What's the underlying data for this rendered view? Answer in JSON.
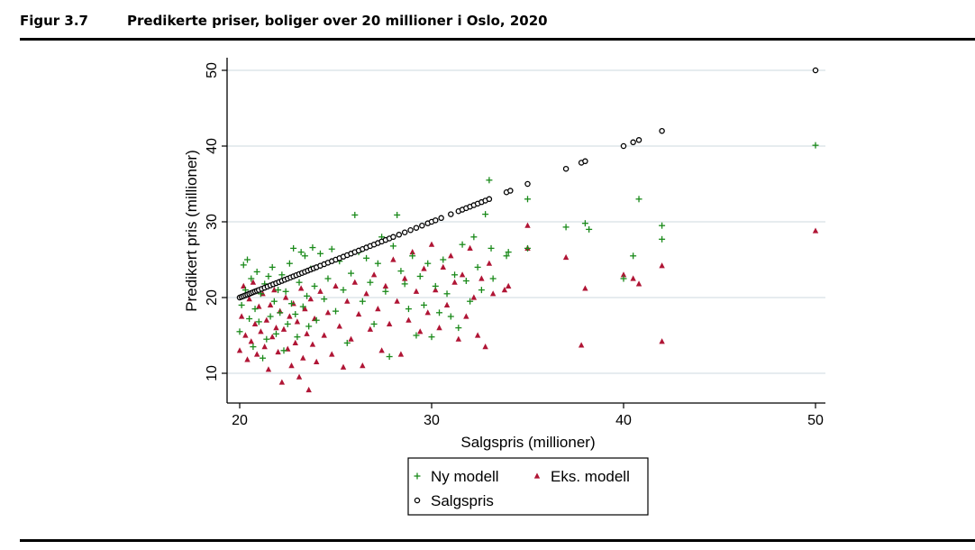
{
  "figure": {
    "number": "Figur 3.7",
    "title": "Predikerte priser, boliger over 20 millioner i Oslo, 2020"
  },
  "colors": {
    "ny_modell": "#1a8a1a",
    "eks_modell": "#b01535",
    "salgspris": "#000000",
    "grid": "#dde6ea"
  },
  "chart_data": {
    "type": "scatter",
    "title": "Predikerte priser, boliger over 20 millioner i Oslo, 2020",
    "xlabel": "Salgspris (millioner)",
    "ylabel": "Predikert pris (millioner)",
    "xlim": [
      20,
      50
    ],
    "ylim": [
      6.5,
      52
    ],
    "xticks": [
      "20",
      "30",
      "40",
      "50"
    ],
    "yticks": [
      "10",
      "20",
      "30",
      "40",
      "50"
    ],
    "grid": true,
    "legend": {
      "position": "bottom",
      "entries": [
        {
          "name": "Ny modell",
          "marker": "plus"
        },
        {
          "name": "Eks. modell",
          "marker": "triangle"
        },
        {
          "name": "Salgspris",
          "marker": "circle"
        }
      ]
    },
    "series": [
      {
        "name": "Ny modell",
        "marker": "plus",
        "points": [
          [
            20.0,
            15.5
          ],
          [
            20.1,
            19.0
          ],
          [
            20.2,
            24.3
          ],
          [
            20.3,
            21.0
          ],
          [
            20.4,
            25.0
          ],
          [
            20.5,
            17.2
          ],
          [
            20.6,
            22.5
          ],
          [
            20.7,
            13.5
          ],
          [
            20.8,
            18.5
          ],
          [
            20.9,
            23.4
          ],
          [
            21.0,
            16.8
          ],
          [
            21.1,
            20.5
          ],
          [
            21.2,
            12.0
          ],
          [
            21.3,
            21.8
          ],
          [
            21.4,
            14.5
          ],
          [
            21.5,
            22.8
          ],
          [
            21.6,
            17.5
          ],
          [
            21.7,
            24.0
          ],
          [
            21.8,
            19.5
          ],
          [
            21.9,
            15.2
          ],
          [
            22.0,
            21.0
          ],
          [
            22.1,
            18.0
          ],
          [
            22.2,
            23.0
          ],
          [
            22.3,
            13.0
          ],
          [
            22.4,
            20.8
          ],
          [
            22.5,
            16.5
          ],
          [
            22.6,
            24.5
          ],
          [
            22.7,
            19.2
          ],
          [
            22.8,
            26.5
          ],
          [
            22.9,
            17.8
          ],
          [
            23.0,
            14.8
          ],
          [
            23.1,
            22.0
          ],
          [
            23.2,
            26.0
          ],
          [
            23.3,
            18.8
          ],
          [
            23.4,
            25.5
          ],
          [
            23.5,
            20.2
          ],
          [
            23.6,
            16.2
          ],
          [
            23.7,
            23.8
          ],
          [
            23.8,
            26.6
          ],
          [
            23.9,
            21.5
          ],
          [
            24.0,
            17.0
          ],
          [
            24.2,
            25.8
          ],
          [
            24.4,
            19.8
          ],
          [
            24.6,
            22.5
          ],
          [
            24.8,
            26.4
          ],
          [
            25.0,
            18.2
          ],
          [
            25.2,
            24.8
          ],
          [
            25.4,
            21.0
          ],
          [
            25.6,
            14.0
          ],
          [
            25.8,
            23.2
          ],
          [
            26.0,
            30.9
          ],
          [
            26.2,
            26.0
          ],
          [
            26.4,
            19.5
          ],
          [
            26.6,
            25.2
          ],
          [
            26.8,
            22.0
          ],
          [
            27.0,
            16.5
          ],
          [
            27.2,
            24.5
          ],
          [
            27.4,
            28.0
          ],
          [
            27.6,
            20.8
          ],
          [
            27.8,
            12.2
          ],
          [
            28.0,
            26.8
          ],
          [
            28.2,
            30.9
          ],
          [
            28.4,
            23.5
          ],
          [
            28.6,
            21.8
          ],
          [
            28.8,
            18.5
          ],
          [
            29.0,
            25.5
          ],
          [
            29.2,
            15.0
          ],
          [
            29.4,
            22.8
          ],
          [
            29.6,
            19.0
          ],
          [
            29.8,
            24.5
          ],
          [
            30.0,
            14.8
          ],
          [
            30.2,
            21.5
          ],
          [
            30.4,
            18.0
          ],
          [
            30.6,
            25.0
          ],
          [
            30.8,
            20.5
          ],
          [
            31.0,
            17.5
          ],
          [
            31.2,
            23.0
          ],
          [
            31.4,
            16.0
          ],
          [
            31.6,
            27.0
          ],
          [
            31.8,
            22.2
          ],
          [
            32.0,
            19.5
          ],
          [
            32.2,
            28.0
          ],
          [
            32.4,
            24.0
          ],
          [
            32.6,
            21.0
          ],
          [
            32.8,
            31.0
          ],
          [
            33.0,
            35.5
          ],
          [
            33.1,
            26.5
          ],
          [
            33.2,
            22.5
          ],
          [
            33.9,
            25.5
          ],
          [
            34.0,
            26.0
          ],
          [
            35.0,
            33.0
          ],
          [
            35.0,
            26.5
          ],
          [
            37.0,
            29.3
          ],
          [
            38.0,
            29.8
          ],
          [
            38.2,
            29.0
          ],
          [
            40.0,
            22.5
          ],
          [
            40.5,
            25.5
          ],
          [
            40.8,
            33.0
          ],
          [
            42.0,
            29.5
          ],
          [
            42.0,
            27.7
          ],
          [
            50.0,
            40.1
          ]
        ]
      },
      {
        "name": "Eks. modell",
        "marker": "triangle",
        "points": [
          [
            20.0,
            13.0
          ],
          [
            20.1,
            17.5
          ],
          [
            20.2,
            21.5
          ],
          [
            20.3,
            15.0
          ],
          [
            20.4,
            11.8
          ],
          [
            20.5,
            19.8
          ],
          [
            20.6,
            14.2
          ],
          [
            20.7,
            22.0
          ],
          [
            20.8,
            16.5
          ],
          [
            20.9,
            12.5
          ],
          [
            21.0,
            18.8
          ],
          [
            21.1,
            15.5
          ],
          [
            21.2,
            20.5
          ],
          [
            21.3,
            13.5
          ],
          [
            21.4,
            17.0
          ],
          [
            21.5,
            10.5
          ],
          [
            21.6,
            19.0
          ],
          [
            21.7,
            14.8
          ],
          [
            21.8,
            21.0
          ],
          [
            21.9,
            16.0
          ],
          [
            22.0,
            12.8
          ],
          [
            22.1,
            18.2
          ],
          [
            22.2,
            8.8
          ],
          [
            22.3,
            15.8
          ],
          [
            22.4,
            20.0
          ],
          [
            22.5,
            13.2
          ],
          [
            22.6,
            17.5
          ],
          [
            22.7,
            11.0
          ],
          [
            22.8,
            19.2
          ],
          [
            22.9,
            14.0
          ],
          [
            23.0,
            16.8
          ],
          [
            23.1,
            9.5
          ],
          [
            23.2,
            21.2
          ],
          [
            23.3,
            12.0
          ],
          [
            23.4,
            18.5
          ],
          [
            23.5,
            15.2
          ],
          [
            23.6,
            7.8
          ],
          [
            23.7,
            19.8
          ],
          [
            23.8,
            13.8
          ],
          [
            23.9,
            17.2
          ],
          [
            24.0,
            11.5
          ],
          [
            24.2,
            20.8
          ],
          [
            24.4,
            15.0
          ],
          [
            24.6,
            18.0
          ],
          [
            24.8,
            12.5
          ],
          [
            25.0,
            21.5
          ],
          [
            25.2,
            16.2
          ],
          [
            25.4,
            10.8
          ],
          [
            25.6,
            19.5
          ],
          [
            25.8,
            14.5
          ],
          [
            26.0,
            22.0
          ],
          [
            26.2,
            17.8
          ],
          [
            26.4,
            11.0
          ],
          [
            26.6,
            20.5
          ],
          [
            26.8,
            15.8
          ],
          [
            27.0,
            23.0
          ],
          [
            27.2,
            18.5
          ],
          [
            27.4,
            13.0
          ],
          [
            27.6,
            21.5
          ],
          [
            27.8,
            16.5
          ],
          [
            28.0,
            25.0
          ],
          [
            28.2,
            19.5
          ],
          [
            28.4,
            12.5
          ],
          [
            28.6,
            22.5
          ],
          [
            28.8,
            17.0
          ],
          [
            29.0,
            26.0
          ],
          [
            29.2,
            20.8
          ],
          [
            29.4,
            15.5
          ],
          [
            29.6,
            23.8
          ],
          [
            29.8,
            18.0
          ],
          [
            30.0,
            27.0
          ],
          [
            30.2,
            21.0
          ],
          [
            30.4,
            16.0
          ],
          [
            30.6,
            24.0
          ],
          [
            30.8,
            19.0
          ],
          [
            31.0,
            25.5
          ],
          [
            31.2,
            22.0
          ],
          [
            31.4,
            14.5
          ],
          [
            31.6,
            23.0
          ],
          [
            31.8,
            17.5
          ],
          [
            32.0,
            26.5
          ],
          [
            32.2,
            20.0
          ],
          [
            32.4,
            15.0
          ],
          [
            32.6,
            22.5
          ],
          [
            32.8,
            13.5
          ],
          [
            33.0,
            24.5
          ],
          [
            33.2,
            20.5
          ],
          [
            33.8,
            21.0
          ],
          [
            34.0,
            21.5
          ],
          [
            35.0,
            29.5
          ],
          [
            35.0,
            26.5
          ],
          [
            37.0,
            25.3
          ],
          [
            37.8,
            13.7
          ],
          [
            38.0,
            21.2
          ],
          [
            40.0,
            23.0
          ],
          [
            40.5,
            22.5
          ],
          [
            40.8,
            21.8
          ],
          [
            42.0,
            24.2
          ],
          [
            42.0,
            14.2
          ],
          [
            50.0,
            28.8
          ]
        ]
      },
      {
        "name": "Salgspris",
        "marker": "circle",
        "points": [
          [
            20.0,
            20.0
          ],
          [
            20.1,
            20.1
          ],
          [
            20.2,
            20.2
          ],
          [
            20.3,
            20.3
          ],
          [
            20.4,
            20.4
          ],
          [
            20.5,
            20.5
          ],
          [
            20.6,
            20.6
          ],
          [
            20.7,
            20.7
          ],
          [
            20.8,
            20.8
          ],
          [
            20.9,
            20.9
          ],
          [
            21.0,
            21.0
          ],
          [
            21.15,
            21.15
          ],
          [
            21.3,
            21.3
          ],
          [
            21.45,
            21.45
          ],
          [
            21.6,
            21.6
          ],
          [
            21.75,
            21.75
          ],
          [
            21.9,
            21.9
          ],
          [
            22.05,
            22.05
          ],
          [
            22.2,
            22.2
          ],
          [
            22.35,
            22.35
          ],
          [
            22.5,
            22.5
          ],
          [
            22.65,
            22.65
          ],
          [
            22.8,
            22.8
          ],
          [
            22.95,
            22.95
          ],
          [
            23.1,
            23.1
          ],
          [
            23.25,
            23.25
          ],
          [
            23.4,
            23.4
          ],
          [
            23.55,
            23.55
          ],
          [
            23.7,
            23.7
          ],
          [
            23.85,
            23.85
          ],
          [
            24.0,
            24.0
          ],
          [
            24.2,
            24.2
          ],
          [
            24.4,
            24.4
          ],
          [
            24.6,
            24.6
          ],
          [
            24.8,
            24.8
          ],
          [
            25.0,
            25.0
          ],
          [
            25.2,
            25.2
          ],
          [
            25.4,
            25.4
          ],
          [
            25.6,
            25.6
          ],
          [
            25.8,
            25.8
          ],
          [
            26.0,
            26.0
          ],
          [
            26.2,
            26.2
          ],
          [
            26.4,
            26.4
          ],
          [
            26.6,
            26.6
          ],
          [
            26.8,
            26.8
          ],
          [
            27.0,
            27.0
          ],
          [
            27.2,
            27.2
          ],
          [
            27.4,
            27.4
          ],
          [
            27.6,
            27.6
          ],
          [
            27.8,
            27.8
          ],
          [
            28.0,
            28.0
          ],
          [
            28.3,
            28.3
          ],
          [
            28.6,
            28.6
          ],
          [
            28.9,
            28.9
          ],
          [
            29.2,
            29.2
          ],
          [
            29.5,
            29.5
          ],
          [
            29.8,
            29.8
          ],
          [
            30.0,
            30.0
          ],
          [
            30.2,
            30.2
          ],
          [
            30.5,
            30.5
          ],
          [
            31.0,
            31.0
          ],
          [
            31.4,
            31.4
          ],
          [
            31.6,
            31.6
          ],
          [
            31.8,
            31.8
          ],
          [
            32.0,
            32.0
          ],
          [
            32.2,
            32.2
          ],
          [
            32.4,
            32.4
          ],
          [
            32.6,
            32.6
          ],
          [
            32.8,
            32.8
          ],
          [
            33.0,
            33.0
          ],
          [
            33.9,
            33.9
          ],
          [
            34.1,
            34.1
          ],
          [
            35.0,
            35.0
          ],
          [
            37.0,
            37.0
          ],
          [
            37.8,
            37.8
          ],
          [
            38.0,
            38.0
          ],
          [
            40.0,
            40.0
          ],
          [
            40.5,
            40.5
          ],
          [
            40.8,
            40.8
          ],
          [
            42.0,
            42.0
          ],
          [
            50.0,
            50.0
          ]
        ]
      }
    ]
  }
}
